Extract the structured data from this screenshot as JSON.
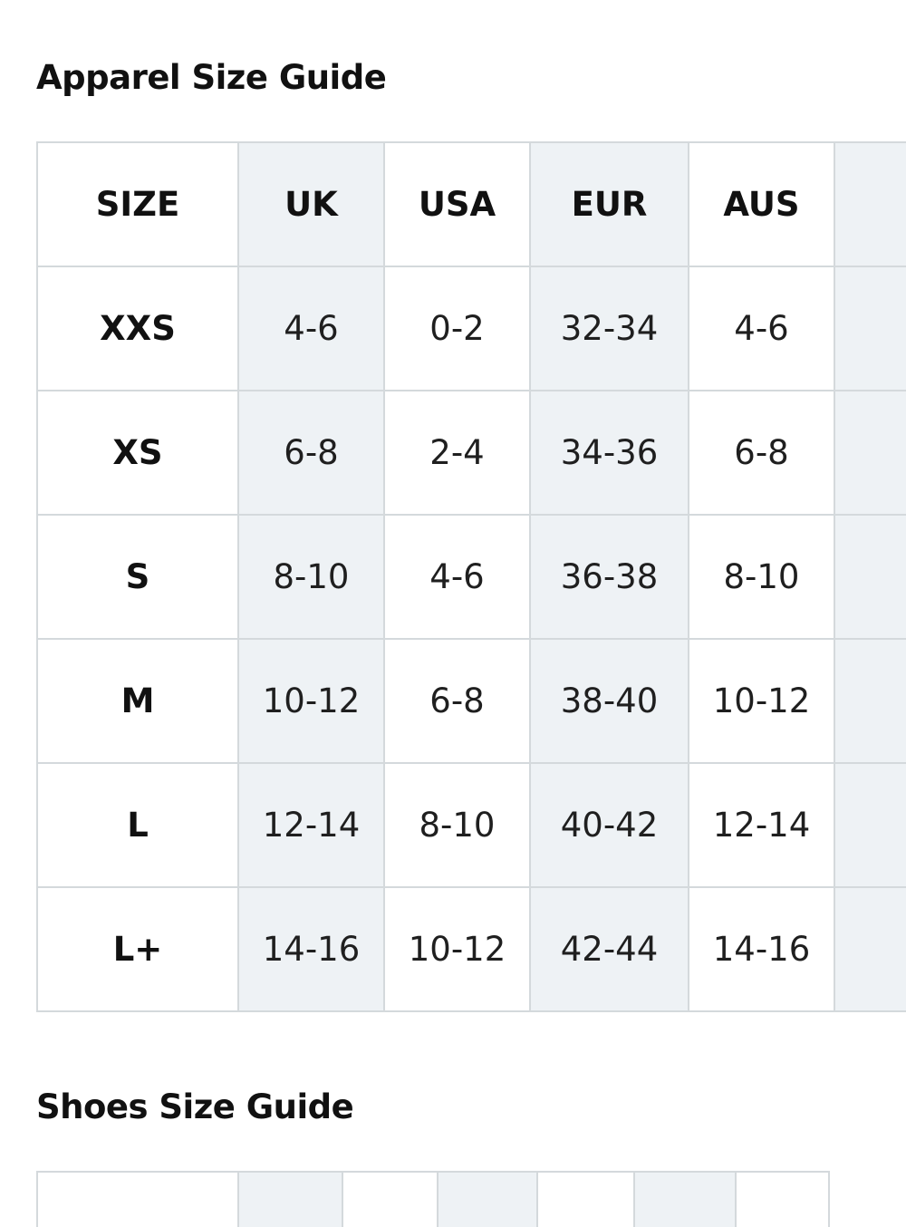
{
  "apparel": {
    "title": "Apparel Size Guide",
    "headers": [
      "SIZE",
      "UK",
      "USA",
      "EUR",
      "AUS",
      ""
    ],
    "rows": [
      {
        "size": "XXS",
        "uk": "4-6",
        "usa": "0-2",
        "eur": "32-34",
        "aus": "4-6"
      },
      {
        "size": "XS",
        "uk": "6-8",
        "usa": "2-4",
        "eur": "34-36",
        "aus": "6-8"
      },
      {
        "size": "S",
        "uk": "8-10",
        "usa": "4-6",
        "eur": "36-38",
        "aus": "8-10"
      },
      {
        "size": "M",
        "uk": "10-12",
        "usa": "6-8",
        "eur": "38-40",
        "aus": "10-12"
      },
      {
        "size": "L",
        "uk": "12-14",
        "usa": "8-10",
        "eur": "40-42",
        "aus": "12-14"
      },
      {
        "size": "L+",
        "uk": "14-16",
        "usa": "10-12",
        "eur": "42-44",
        "aus": "14-16"
      }
    ]
  },
  "shoes": {
    "title": "Shoes Size Guide"
  },
  "colors": {
    "shaded_column": "#eef2f5",
    "border": "#d4d9dc",
    "text": "#1a1a1a"
  }
}
